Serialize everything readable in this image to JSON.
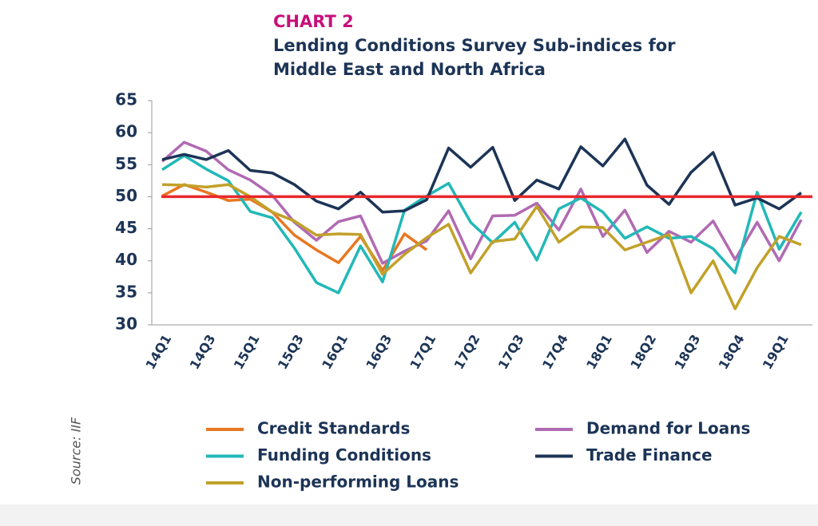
{
  "chart_data": {
    "type": "line",
    "kicker": "CHART 2",
    "title": [
      "Lending Conditions Survey Sub-indices for",
      "Middle East and North Africa"
    ],
    "source": "Source: IIF",
    "categories": [
      "14Q1",
      null,
      "14Q3",
      null,
      "15Q1",
      null,
      "15Q3",
      null,
      "16Q1",
      null,
      "16Q3",
      null,
      "17Q1",
      null,
      "17Q2",
      null,
      "17Q3",
      null,
      "17Q4",
      null,
      "18Q1",
      null,
      "18Q2",
      null,
      "18Q3",
      null,
      "18Q4",
      null,
      "19Q1",
      null
    ],
    "series": [
      {
        "name": "Credit Standards",
        "color": "#e87722",
        "values": [
          50.1,
          51.9,
          50.7,
          49.4,
          49.6,
          47.6,
          44,
          41.7,
          39.7,
          43.8,
          38.5,
          44.2,
          41.7,
          null,
          null,
          null,
          null,
          null,
          null,
          null,
          null,
          null,
          null,
          null,
          null,
          null,
          null,
          null,
          null,
          null
        ]
      },
      {
        "name": "Demand for Loans",
        "color": "#b06ab3",
        "values": [
          55.5,
          58.5,
          57.1,
          54.2,
          52.6,
          50.2,
          46,
          43.2,
          46.1,
          47,
          39.6,
          41.5,
          43.1,
          47.8,
          40.3,
          47,
          47.1,
          49,
          44.8,
          51.2,
          43.8,
          47.9,
          41.3,
          44.6,
          42.9,
          46.2,
          40.2,
          46,
          40,
          46.4
        ]
      },
      {
        "name": "Funding Conditions",
        "color": "#22b8b8",
        "values": [
          54.2,
          56.4,
          54.3,
          52.5,
          47.7,
          46.7,
          42,
          36.6,
          35,
          42.3,
          36.7,
          47.9,
          50.1,
          52.1,
          46,
          42.8,
          46,
          40.1,
          48.1,
          49.8,
          47.6,
          43.5,
          45.3,
          43.5,
          43.8,
          41.9,
          38.1,
          50.7,
          41.8,
          47.6
        ]
      },
      {
        "name": "Trade Finance",
        "color": "#1c3456",
        "values": [
          55.8,
          56.6,
          55.8,
          57.2,
          54.1,
          53.7,
          51.9,
          49.3,
          48.1,
          50.7,
          47.6,
          47.8,
          49.5,
          57.6,
          54.6,
          57.7,
          49.4,
          52.6,
          51.2,
          57.8,
          54.8,
          59,
          51.8,
          48.8,
          53.8,
          56.9,
          48.7,
          49.8,
          48.1,
          50.6
        ]
      },
      {
        "name": "Non-performing Loans",
        "color": "#c2a12a",
        "values": [
          51.9,
          51.8,
          51.5,
          51.9,
          50,
          47.6,
          46.2,
          44,
          44.2,
          44.1,
          37.9,
          41,
          43.6,
          45.7,
          38.1,
          43,
          43.4,
          48.5,
          42.9,
          45.3,
          45.2,
          41.7,
          42.9,
          44.1,
          35,
          40,
          32.5,
          38.9,
          43.8,
          42.5
        ]
      }
    ],
    "reference_line": {
      "value": 50,
      "color": "#e8282b"
    },
    "ylim": [
      30,
      65
    ],
    "yticks": [
      30,
      35,
      40,
      45,
      50,
      55,
      60,
      65
    ]
  }
}
